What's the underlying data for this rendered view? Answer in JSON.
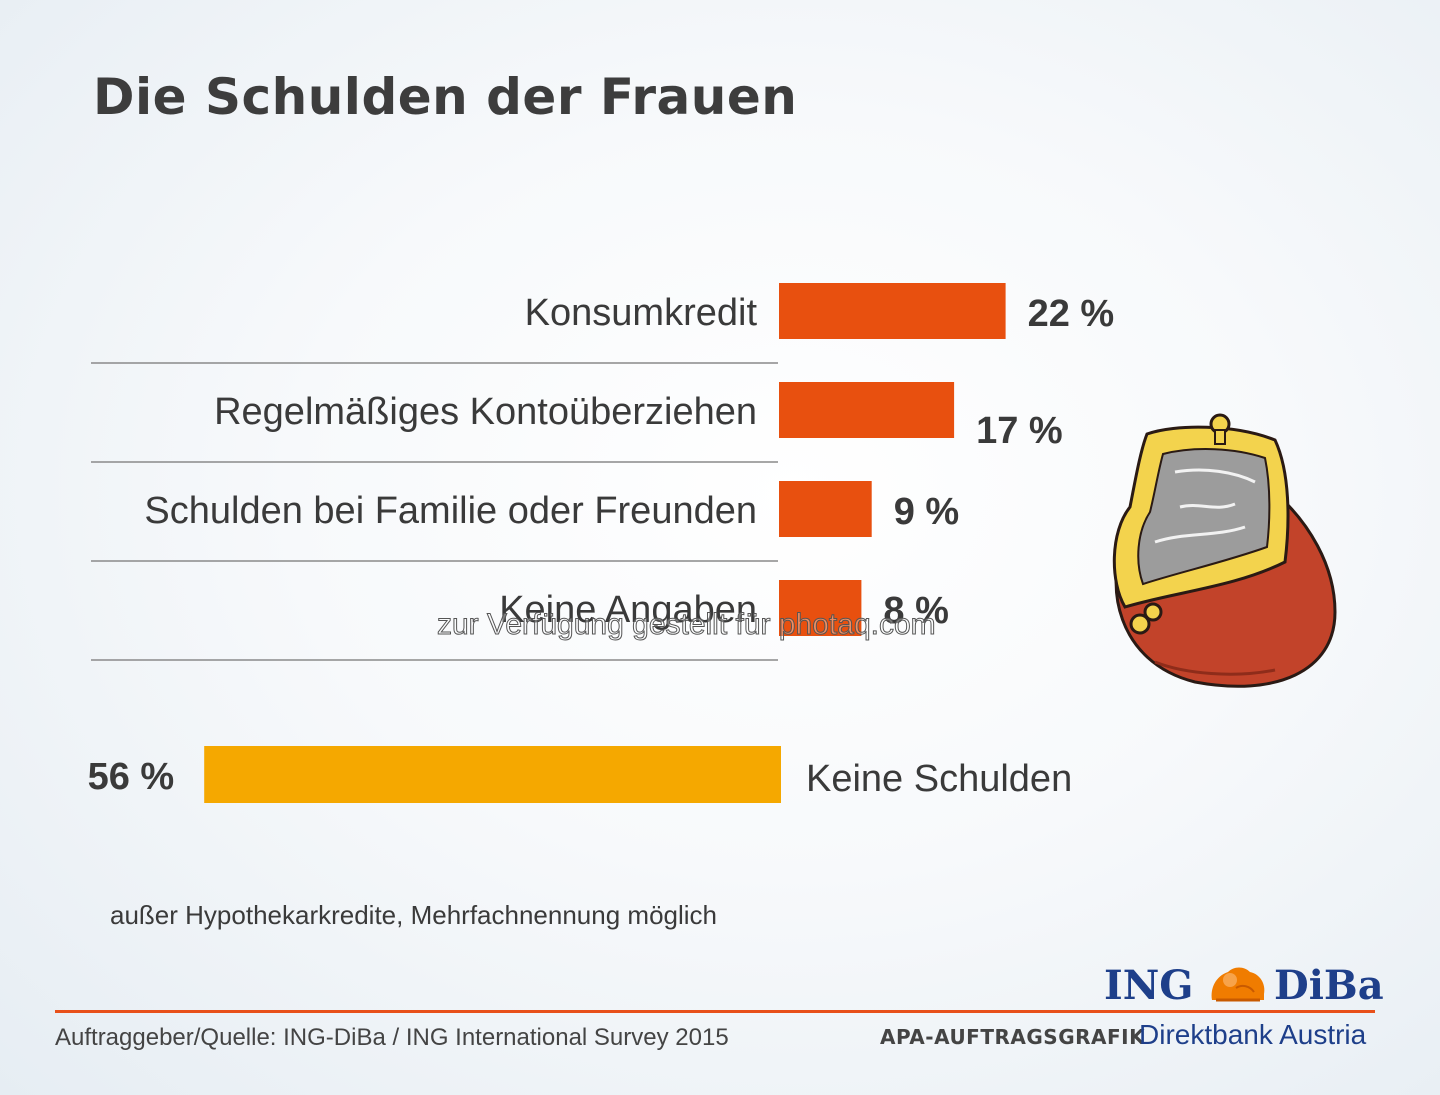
{
  "title": "Die Schulden der Frauen",
  "chart_data": {
    "type": "bar",
    "orientation": "horizontal",
    "categories": [
      "Konsumkredit",
      "Regelmäßiges Kontoüberziehen",
      "Schulden bei Familie oder Freunden",
      "Keine Angaben"
    ],
    "values": [
      22,
      17,
      9,
      8
    ],
    "value_labels": [
      "22 %",
      "17 %",
      "9 %",
      "8 %"
    ],
    "unit": "%",
    "bar_color": "#e8500f",
    "highlight": {
      "category": "Keine Schulden",
      "value": 56,
      "value_label": "56 %",
      "color": "#f5a800"
    },
    "grid": false,
    "legend": "none"
  },
  "footnote": "außer Hypothekarkredite, Mehrfachnennung möglich",
  "source": "Auftraggeber/Quelle: ING-DiBa / ING International Survey 2015",
  "credit": "APA-AUFTRAGSGRAFIK",
  "logo": {
    "left_word": "ING",
    "right_word": "DiBa",
    "tagline": "Direktbank Austria",
    "icon": "lion-icon",
    "color": "#1e3f8a"
  },
  "accent_color": "#e8501a",
  "illustration": "purse-icon",
  "watermark": "zur Verfügung gestellt für photaq.com"
}
